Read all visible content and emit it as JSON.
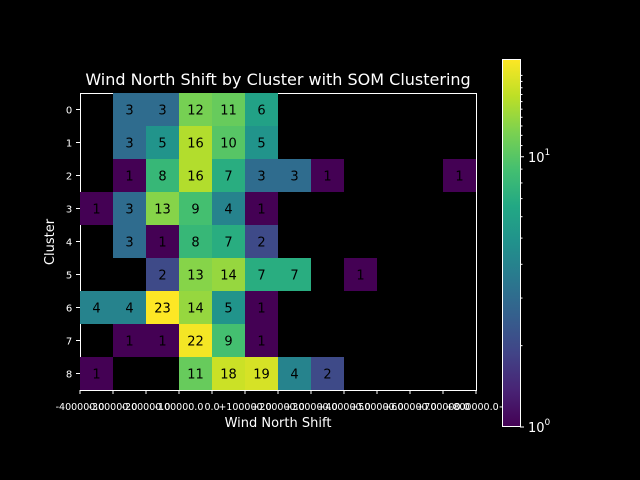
{
  "chart_data": {
    "type": "heatmap",
    "title": "Wind North Shift by Cluster with SOM Clustering",
    "xlabel": "Wind North Shift",
    "ylabel": "Cluster",
    "x_ticks": [
      "-400000.0",
      "-300000.0",
      "-200000.0",
      "-100000.0",
      "0.0",
      "+100000.0",
      "+200000.0",
      "+300000.0",
      "+400000.0",
      "+500000.0",
      "+600000.0",
      "+700000.0",
      "+800000.0+"
    ],
    "clusters": [
      "0",
      "1",
      "2",
      "3",
      "4",
      "5",
      "6",
      "7",
      "8"
    ],
    "values": [
      [
        null,
        3,
        3,
        12,
        11,
        6,
        null,
        null,
        null,
        null,
        null,
        null
      ],
      [
        null,
        3,
        5,
        16,
        10,
        5,
        null,
        null,
        null,
        null,
        null,
        null
      ],
      [
        null,
        1,
        8,
        16,
        7,
        3,
        3,
        1,
        null,
        null,
        null,
        1
      ],
      [
        1,
        3,
        13,
        9,
        4,
        1,
        null,
        null,
        null,
        null,
        null,
        null
      ],
      [
        null,
        3,
        1,
        8,
        7,
        2,
        null,
        null,
        null,
        null,
        null,
        null
      ],
      [
        null,
        null,
        2,
        13,
        14,
        7,
        7,
        null,
        1,
        null,
        null,
        null
      ],
      [
        4,
        4,
        23,
        14,
        5,
        1,
        null,
        null,
        null,
        null,
        null,
        null
      ],
      [
        null,
        1,
        1,
        22,
        9,
        1,
        null,
        null,
        null,
        null,
        null,
        null
      ],
      [
        1,
        null,
        null,
        11,
        18,
        19,
        4,
        2,
        null,
        null,
        null,
        null
      ]
    ],
    "colorbar": {
      "scale": "log",
      "range": [
        1,
        23
      ],
      "colormap": "viridis",
      "tick_labels": [
        {
          "base": "10",
          "exp": "0"
        },
        {
          "base": "10",
          "exp": "1"
        }
      ]
    }
  }
}
